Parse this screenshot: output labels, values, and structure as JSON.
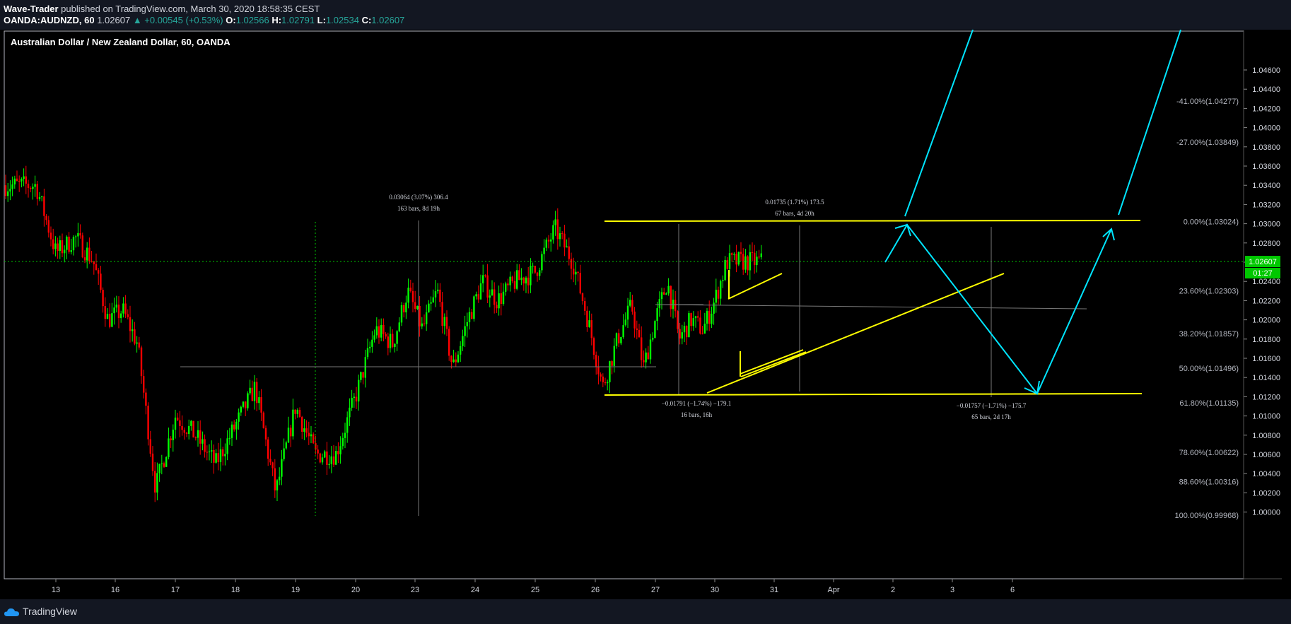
{
  "header": {
    "author": "Wave-Trader",
    "published_text": " published on TradingView.com, March 30, 2020 18:58:35 CEST",
    "symbol": "OANDA:AUDNZD, 60",
    "last": "1.02607",
    "change": "▲ +0.00545 (+0.53%)",
    "o_label": "O:",
    "o_value": "1.02566",
    "h_label": "H:",
    "h_value": "1.02791",
    "l_label": "L:",
    "l_value": "1.02534",
    "c_label": "C:",
    "c_value": "1.02607"
  },
  "footer": {
    "brand": "TradingView"
  },
  "colors": {
    "background": "#000000",
    "up": "#00ff00",
    "down": "#ff0000",
    "pattern_lines": "#ffff00",
    "projection": "#00e5ff",
    "price_tag": "#00c800"
  },
  "chart_data": {
    "type": "candlestick",
    "title": "Australian Dollar / New Zealand Dollar, 60, OANDA",
    "y_range": [
      0.99804,
      1.04764
    ],
    "y_ticks": [
      "1.04600",
      "1.04400",
      "1.04200",
      "1.04000",
      "1.03800",
      "1.03600",
      "1.03400",
      "1.03200",
      "1.03000",
      "1.02800",
      "1.02600",
      "1.02400",
      "1.02200",
      "1.02000",
      "1.01800",
      "1.01600",
      "1.01400",
      "1.01200",
      "1.01000",
      "1.00800",
      "1.00600",
      "1.00400",
      "1.00200",
      "1.00000"
    ],
    "x_ticks": [
      "13",
      "16",
      "17",
      "18",
      "19",
      "20",
      "23",
      "24",
      "25",
      "26",
      "27",
      "30",
      "31",
      "Apr",
      "2",
      "3",
      "6"
    ],
    "last_price": {
      "value": 1.02607,
      "label": "1.02607",
      "countdown": "01:27"
    },
    "price_path": [
      [
        "13",
        1.034
      ],
      [
        "13",
        1.027
      ],
      [
        "13",
        1.0285
      ],
      [
        "16",
        1.0262
      ],
      [
        "16",
        1.02
      ],
      [
        "16",
        1.021
      ],
      [
        "16",
        1.0175
      ],
      [
        "17",
        1.0025
      ],
      [
        "17",
        1.01
      ],
      [
        "17",
        1.008
      ],
      [
        "18",
        1.005
      ],
      [
        "18",
        1.009
      ],
      [
        "18",
        1.013
      ],
      [
        "19",
        1.002
      ],
      [
        "19",
        1.011
      ],
      [
        "19",
        1.006
      ],
      [
        "20",
        1.006
      ],
      [
        "20",
        1.012
      ],
      [
        "20",
        1.019
      ],
      [
        "23",
        1.0175
      ],
      [
        "23",
        1.023
      ],
      [
        "23",
        1.019
      ],
      [
        "23",
        1.023
      ],
      [
        "24",
        1.015
      ],
      [
        "24",
        1.02
      ],
      [
        "24",
        1.024
      ],
      [
        "24",
        1.022
      ],
      [
        "25",
        1.024
      ],
      [
        "25",
        1.025
      ],
      [
        "25",
        1.0295
      ],
      [
        "26",
        1.026
      ],
      [
        "26",
        1.02
      ],
      [
        "26",
        1.013
      ],
      [
        "26",
        1.018
      ],
      [
        "27",
        1.0215
      ],
      [
        "27",
        1.015
      ],
      [
        "27",
        1.02
      ],
      [
        "27",
        1.024
      ],
      [
        "27",
        1.018
      ],
      [
        "30",
        1.02
      ],
      [
        "30",
        1.019
      ],
      [
        "30",
        1.022
      ],
      [
        "30",
        1.026
      ],
      [
        "30",
        1.02607
      ]
    ],
    "fibonacci_levels": [
      {
        "label": "-41.00%(1.04277)",
        "value": 1.04277
      },
      {
        "label": "-27.00%(1.03849)",
        "value": 1.03849
      },
      {
        "label": "0.00%(1.03024)",
        "value": 1.03024
      },
      {
        "label": "23.60%(1.02303)",
        "value": 1.02303
      },
      {
        "label": "38.20%(1.01857)",
        "value": 1.01857
      },
      {
        "label": "50.00%(1.01496)",
        "value": 1.01496
      },
      {
        "label": "61.80%(1.01135)",
        "value": 1.01135
      },
      {
        "label": "78.60%(1.00622)",
        "value": 1.00622
      },
      {
        "label": "88.60%(1.00316)",
        "value": 1.00316
      },
      {
        "label": "100.00%(0.99968)",
        "value": 0.99968
      }
    ],
    "measurements": [
      {
        "line1": "0.03064 (3.07%) 306.4",
        "line2": "163 bars, 8d 19h"
      },
      {
        "line1": "0.01735 (1.71%) 173.5",
        "line2": "67 bars, 4d 20h"
      },
      {
        "line1": "−0.01791 (−1.74%) −179.1",
        "line2": "16 bars, 16h"
      },
      {
        "line1": "−0.01757 (−1.71%) −175.7",
        "line2": "65 bars, 2d 17h"
      }
    ],
    "grid": false
  }
}
